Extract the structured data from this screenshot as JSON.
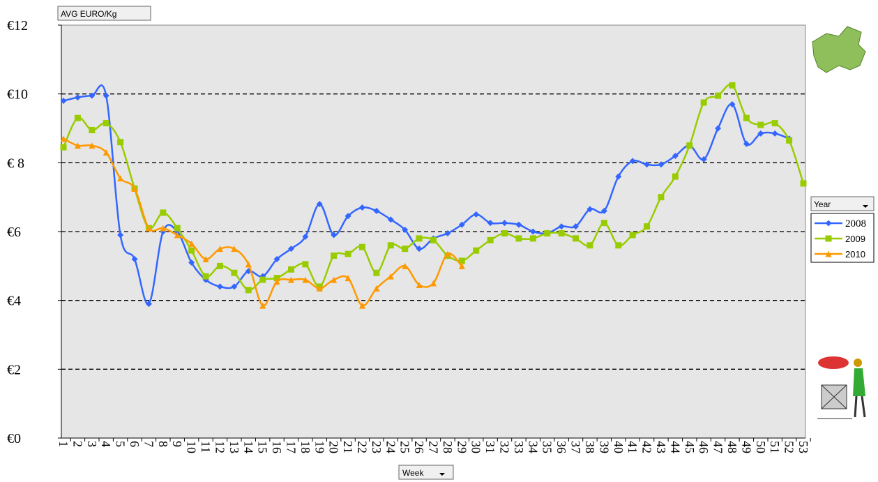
{
  "chart_data": {
    "type": "line",
    "title": "AVG  EURO/Kg",
    "x_label": "Week",
    "legend_title": "Year",
    "categories": [
      "1",
      "2",
      "3",
      "4",
      "5",
      "6",
      "7",
      "8",
      "9",
      "10",
      "11",
      "12",
      "13",
      "14",
      "15",
      "16",
      "17",
      "18",
      "19",
      "20",
      "21",
      "22",
      "23",
      "24",
      "25",
      "26",
      "27",
      "28",
      "29",
      "30",
      "31",
      "32",
      "33",
      "34",
      "35",
      "36",
      "37",
      "38",
      "39",
      "40",
      "41",
      "42",
      "43",
      "44",
      "45",
      "46",
      "47",
      "48",
      "49",
      "50",
      "51",
      "52",
      "53"
    ],
    "series": [
      {
        "name": "2008",
        "color": "#3366ff",
        "marker": "diamond",
        "values": [
          9.8,
          9.9,
          9.95,
          9.95,
          5.9,
          5.2,
          3.9,
          6.0,
          6.0,
          5.1,
          4.6,
          4.4,
          4.4,
          4.85,
          4.7,
          5.2,
          5.5,
          5.85,
          6.8,
          5.9,
          6.45,
          6.7,
          6.6,
          6.35,
          6.05,
          5.5,
          5.8,
          5.95,
          6.2,
          6.5,
          6.25,
          6.25,
          6.2,
          6.0,
          5.95,
          6.15,
          6.15,
          6.65,
          6.6,
          7.6,
          8.05,
          7.95,
          7.95,
          8.2,
          8.5,
          8.1,
          9.0,
          9.7,
          8.55,
          8.85,
          8.85,
          8.7,
          null
        ]
      },
      {
        "name": "2009",
        "color": "#99cc00",
        "marker": "square",
        "values": [
          8.45,
          9.3,
          8.95,
          9.15,
          8.6,
          7.25,
          6.1,
          6.55,
          6.1,
          5.45,
          4.7,
          5.0,
          4.8,
          4.3,
          4.6,
          4.65,
          4.9,
          5.05,
          4.4,
          5.3,
          5.35,
          5.55,
          4.8,
          5.6,
          5.5,
          5.8,
          5.75,
          5.3,
          5.15,
          5.45,
          5.75,
          5.95,
          5.8,
          5.8,
          5.95,
          5.95,
          5.8,
          5.6,
          6.25,
          5.6,
          5.9,
          6.15,
          7.0,
          7.6,
          8.5,
          9.75,
          9.95,
          10.25,
          9.3,
          9.1,
          9.15,
          8.65,
          7.4
        ]
      },
      {
        "name": "2010",
        "color": "#ff9900",
        "marker": "triangle",
        "values": [
          8.7,
          8.5,
          8.5,
          8.3,
          7.55,
          7.25,
          6.1,
          6.1,
          5.9,
          5.65,
          5.2,
          5.5,
          5.5,
          5.05,
          3.85,
          4.55,
          4.6,
          4.6,
          4.35,
          4.6,
          4.65,
          3.85,
          4.35,
          4.7,
          5.0,
          4.45,
          4.5,
          5.35,
          5.0,
          null,
          null,
          null,
          null,
          null,
          null,
          null,
          null,
          null,
          null,
          null,
          null,
          null,
          null,
          null,
          null,
          null,
          null,
          null,
          null,
          null,
          null,
          null,
          null
        ]
      }
    ],
    "ylim": [
      0,
      12
    ],
    "yticks": [
      {
        "value": 0,
        "label": "€0"
      },
      {
        "value": 2,
        "label": "€2"
      },
      {
        "value": 4,
        "label": "€4"
      },
      {
        "value": 6,
        "label": "€6"
      },
      {
        "value": 8,
        "label": "€ 8"
      },
      {
        "value": 10,
        "label": "€10"
      },
      {
        "value": 12,
        "label": "€12"
      }
    ],
    "grid": true,
    "legend_position": "right"
  }
}
